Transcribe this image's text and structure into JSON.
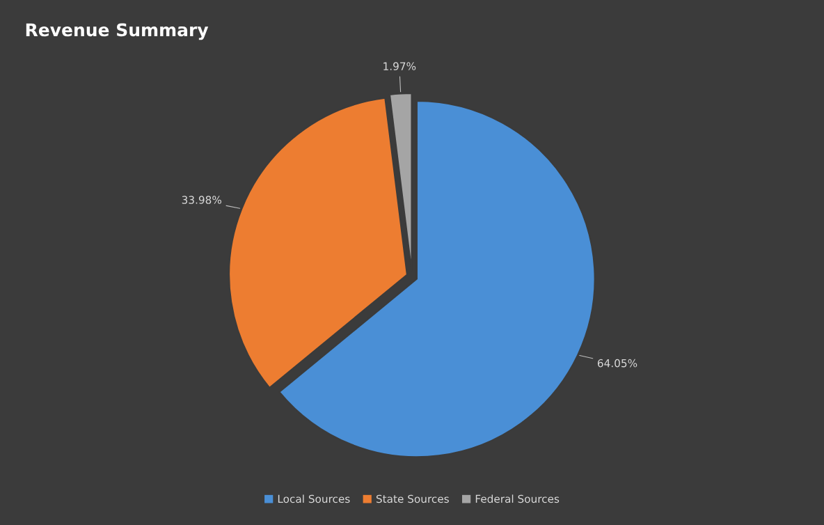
{
  "chart_data": {
    "type": "pie",
    "title": "Revenue Summary",
    "categories": [
      "Local Sources",
      "State Sources",
      "Federal Sources"
    ],
    "values": [
      64.05,
      33.98,
      1.97
    ],
    "colors": [
      "#4a8fd6",
      "#ed7d31",
      "#a5a5a5"
    ],
    "value_labels": [
      "64.05%",
      "33.98%",
      "1.97%"
    ],
    "legend": "bottom"
  }
}
